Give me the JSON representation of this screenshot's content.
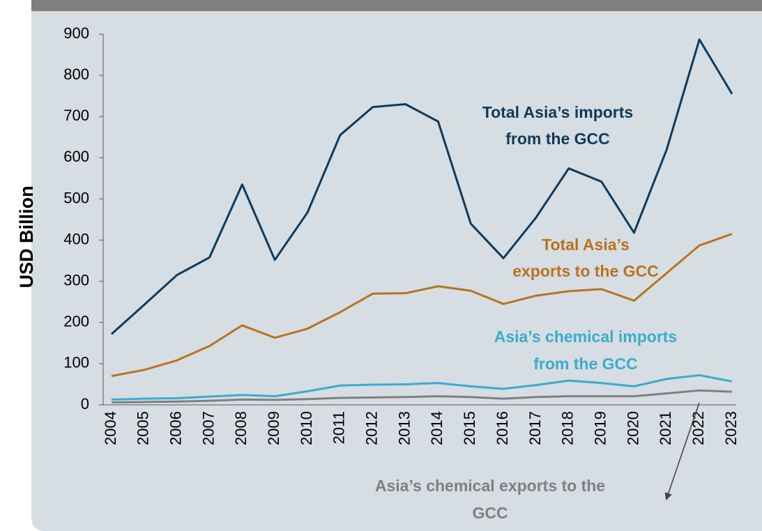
{
  "chart_data": {
    "type": "line",
    "y_label": "USD Billion",
    "categories": [
      "2004",
      "2005",
      "2006",
      "2007",
      "2008",
      "2009",
      "2010",
      "2011",
      "2012",
      "2013",
      "2014",
      "2015",
      "2016",
      "2017",
      "2018",
      "2019",
      "2020",
      "2021",
      "2022",
      "2023"
    ],
    "ylim": [
      0,
      900
    ],
    "yticks": [
      0,
      100,
      200,
      300,
      400,
      500,
      600,
      700,
      800,
      900
    ],
    "series": [
      {
        "label": [
          "Total Asia’s imports",
          "from the GCC"
        ],
        "color": "#0e3a5b",
        "values": [
          172,
          243,
          315,
          358,
          535,
          352,
          467,
          655,
          723,
          730,
          688,
          440,
          356,
          455,
          574,
          542,
          418,
          620,
          887,
          755
        ]
      },
      {
        "label": [
          "Total Asia’s",
          "exports to the GCC"
        ],
        "color": "#b8731f",
        "values": [
          70,
          85,
          108,
          143,
          193,
          163,
          185,
          225,
          270,
          271,
          288,
          277,
          245,
          265,
          276,
          281,
          253,
          320,
          387,
          415
        ]
      },
      {
        "label": [
          "Asia’s chemical imports",
          "from the GCC"
        ],
        "color": "#3aaccc",
        "values": [
          13,
          15,
          16,
          20,
          24,
          21,
          33,
          47,
          49,
          50,
          53,
          45,
          39,
          48,
          59,
          53,
          45,
          63,
          72,
          57
        ]
      },
      {
        "label": [
          "Asia’s chemical exports to the",
          "GCC"
        ],
        "color": "#808080",
        "values": [
          6,
          7,
          8,
          10,
          13,
          12,
          14,
          17,
          18,
          19,
          21,
          19,
          15,
          19,
          21,
          21,
          21,
          28,
          35,
          32
        ]
      }
    ]
  }
}
